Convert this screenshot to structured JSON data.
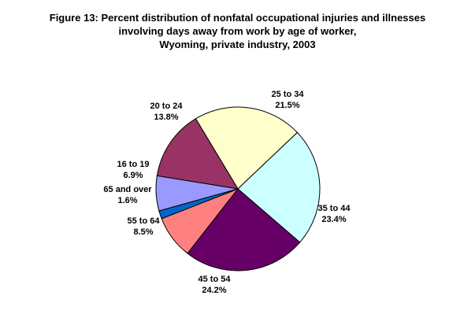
{
  "chart_data": {
    "type": "pie",
    "title": [
      "Figure 13: Percent distribution of nonfatal occupational injuries and illnesses",
      "involving days away from work by age of worker,",
      "Wyoming, private industry, 2003"
    ],
    "start_angle_deg": -31,
    "direction": "clockwise",
    "slices": [
      {
        "label": "25 to 34",
        "value": 21.5,
        "value_label": "21.5%",
        "color": "#FFFFCC"
      },
      {
        "label": "35 to 44",
        "value": 23.4,
        "value_label": "23.4%",
        "color": "#CCFFFF"
      },
      {
        "label": "45 to 54",
        "value": 24.2,
        "value_label": "24.2%",
        "color": "#660066"
      },
      {
        "label": "55 to 64",
        "value": 8.5,
        "value_label": "8.5%",
        "color": "#FF8080"
      },
      {
        "label": "65 and over",
        "value": 1.6,
        "value_label": "1.6%",
        "color": "#0066CC"
      },
      {
        "label": "16 to 19",
        "value": 6.9,
        "value_label": "6.9%",
        "color": "#9999FF"
      },
      {
        "label": "20 to 24",
        "value": 13.8,
        "value_label": "13.8%",
        "color": "#993366"
      }
    ],
    "legend": "none",
    "outline_color": "#000000"
  }
}
